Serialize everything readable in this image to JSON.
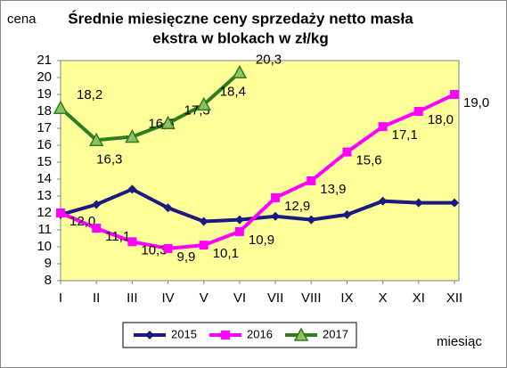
{
  "chart_data": {
    "type": "line",
    "title": [
      "Średnie miesięczne ceny sprzedaży netto masła",
      "ekstra w blokach w zł/kg"
    ],
    "y_label": "cena",
    "x_label": "miesiąc",
    "categories": [
      "I",
      "II",
      "III",
      "IV",
      "V",
      "VI",
      "VII",
      "VIII",
      "IX",
      "X",
      "XI",
      "XII"
    ],
    "ylim": [
      8,
      21
    ],
    "yticks": [
      8,
      9,
      10,
      11,
      12,
      13,
      14,
      15,
      16,
      17,
      18,
      19,
      20,
      21
    ],
    "grid": false,
    "legend": "bottom",
    "series": [
      {
        "name": "2015",
        "color": "#1a1a80",
        "marker": "diamond",
        "values": [
          11.9,
          12.5,
          13.4,
          12.3,
          11.5,
          11.6,
          11.8,
          11.6,
          11.9,
          12.7,
          12.6,
          12.6
        ]
      },
      {
        "name": "2016",
        "color": "#ff00ff",
        "marker": "square",
        "values": [
          12.0,
          11.1,
          10.3,
          9.9,
          10.1,
          10.9,
          12.9,
          13.9,
          15.6,
          17.1,
          18.0,
          19.0
        ],
        "value_labels": [
          "12,0",
          "11,1",
          "10,3",
          "9,9",
          "10,1",
          "10,9",
          "12,9",
          "13,9",
          "15,6",
          "17,1",
          "18,0",
          "19,0"
        ]
      },
      {
        "name": "2017",
        "color": "#2e7d1e",
        "marker": "triangle",
        "values": [
          18.2,
          16.3,
          16.5,
          17.3,
          18.4,
          20.3,
          null,
          null,
          null,
          null,
          null,
          null
        ],
        "value_labels": [
          "18,2",
          "16,3",
          "16,5",
          "17,3",
          "18,4",
          "20,3",
          null,
          null,
          null,
          null,
          null,
          null
        ]
      }
    ]
  }
}
